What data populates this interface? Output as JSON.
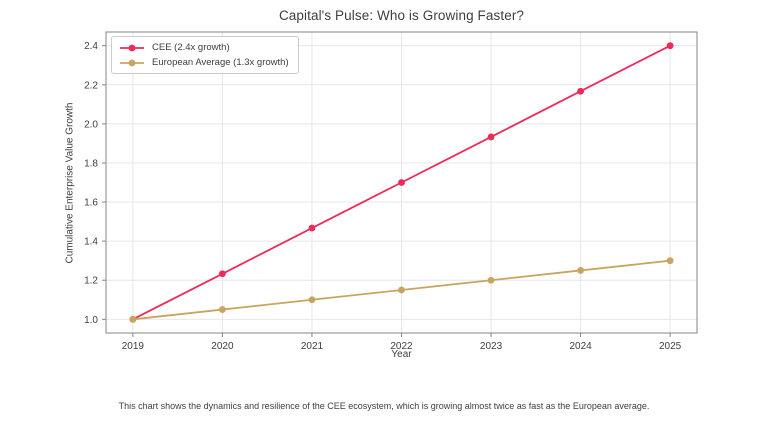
{
  "title": "Capital's Pulse: Who is Growing Faster?",
  "caption": "This chart shows the dynamics and resilience of the CEE ecosystem, which is growing almost twice as fast as the European average.",
  "chart_data": {
    "type": "line",
    "title": "Capital's Pulse: Who is Growing Faster?",
    "xlabel": "Year",
    "ylabel": "Cumulative Enterprise Value Growth",
    "x": [
      2019,
      2020,
      2021,
      2022,
      2023,
      2024,
      2025
    ],
    "series": [
      {
        "name": "CEE (2.4x growth)",
        "color": "#ee2a5b",
        "values": [
          1.0,
          1.233,
          1.467,
          1.7,
          1.933,
          2.167,
          2.4
        ]
      },
      {
        "name": "European Average (1.3x growth)",
        "color": "#c8a45f",
        "values": [
          1.0,
          1.05,
          1.1,
          1.15,
          1.2,
          1.25,
          1.3
        ]
      }
    ],
    "xlim": [
      2018.7,
      2025.3
    ],
    "ylim": [
      0.93,
      2.47
    ],
    "xticks": [
      2019,
      2020,
      2021,
      2022,
      2023,
      2024,
      2025
    ],
    "xtick_labels": [
      "2019",
      "2020",
      "2021",
      "2022",
      "2023",
      "2024",
      "2025"
    ],
    "yticks": [
      1.0,
      1.2,
      1.4,
      1.6,
      1.8,
      2.0,
      2.2,
      2.4
    ],
    "ytick_labels": [
      "1.0",
      "1.2",
      "1.4",
      "1.6",
      "1.8",
      "2.0",
      "2.2",
      "2.4"
    ],
    "grid": true,
    "grid_color": "#e7e7e7",
    "spine_color": "#858585",
    "text_color": "#3c4043",
    "legend_position": "upper left"
  }
}
